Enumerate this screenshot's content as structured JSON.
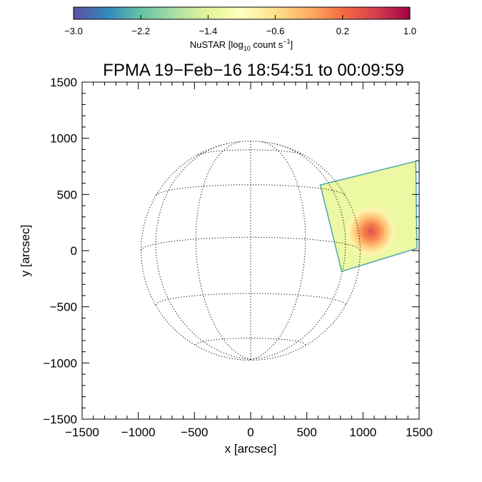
{
  "chart_data": {
    "type": "heatmap",
    "title": "FPMA 19−Feb−16 18:54:51 to 00:09:59",
    "xlabel": "x [arcsec]",
    "ylabel": "y [arcsec]",
    "xlim": [
      -1500,
      1500
    ],
    "ylim": [
      -1500,
      1500
    ],
    "x_ticks": [
      -1500,
      -1000,
      -500,
      0,
      500,
      1000,
      1500
    ],
    "y_ticks": [
      -1500,
      -1000,
      -500,
      0,
      500,
      1000,
      1500
    ],
    "x_tick_labels": [
      "−1500",
      "−1000",
      "−500",
      "0",
      "500",
      "1000",
      "1500"
    ],
    "y_tick_labels": [
      "−1500",
      "−1000",
      "−500",
      "0",
      "500",
      "1000",
      "1500"
    ],
    "solar_radius_arcsec": 975,
    "grid_latitudes_deg": [
      -60,
      -30,
      0,
      30,
      60
    ],
    "grid_longitudes_deg": [
      -60,
      -30,
      0,
      30,
      60
    ],
    "colorbar": {
      "label_main": "NuSTAR [log",
      "label_sub": "10",
      "label_mid": " count s",
      "label_sup": "−1",
      "label_end": "]",
      "range": [
        -3.0,
        1.0
      ],
      "ticks": [
        -3.0,
        -2.2,
        -1.4,
        -0.6,
        0.2,
        1.0
      ],
      "tick_labels": [
        "−3.0",
        "−2.2",
        "−1.4",
        "−0.6",
        "0.2",
        "1.0"
      ],
      "colormap": [
        "#5e4fa2",
        "#3288bd",
        "#66c2a5",
        "#abdda4",
        "#e6f598",
        "#ffffbf",
        "#fee08b",
        "#fdae61",
        "#f46d43",
        "#d53e4f",
        "#9e0142"
      ]
    },
    "observation_region": {
      "corners": [
        [
          620,
          585
        ],
        [
          1470,
          795
        ],
        [
          1480,
          20
        ],
        [
          810,
          -185
        ]
      ],
      "background_log_rate": -1.3,
      "source": {
        "x": 1070,
        "y": 170,
        "peak_log_rate": 0.45,
        "sigma_arcsec": 95
      }
    }
  }
}
